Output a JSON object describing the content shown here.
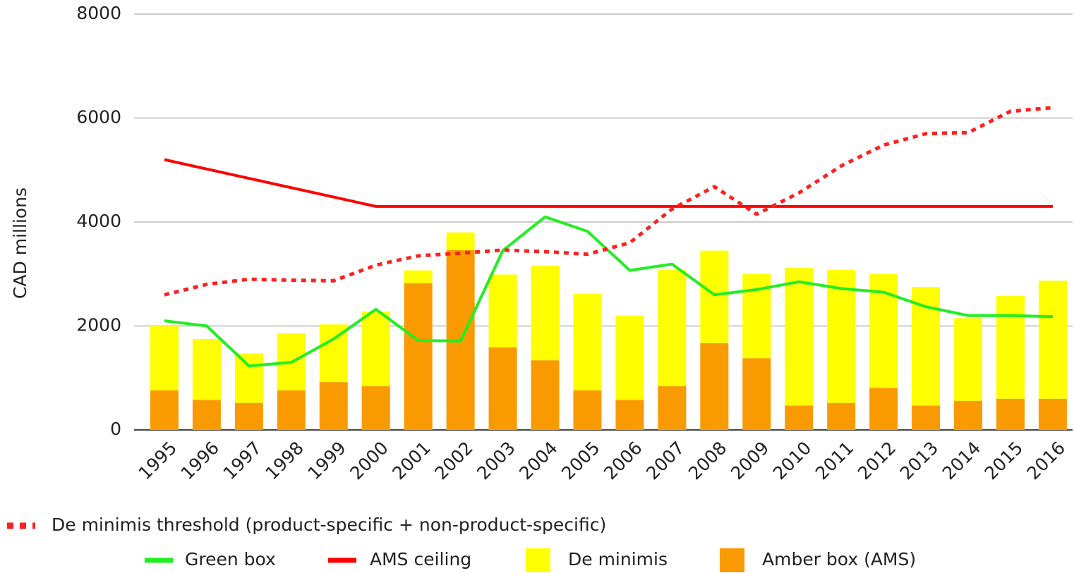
{
  "chart_data": {
    "type": "bar-line",
    "y_label": "CAD millions",
    "categories": [
      "1995",
      "1996",
      "1997",
      "1998",
      "1999",
      "2000",
      "2001",
      "2002",
      "2003",
      "2004",
      "2005",
      "2006",
      "2007",
      "2008",
      "2009",
      "2010",
      "2011",
      "2012",
      "2013",
      "2014",
      "2015",
      "2016"
    ],
    "ylim": [
      0,
      8000
    ],
    "yticks": [
      0,
      2000,
      4000,
      6000,
      8000
    ],
    "grid": true,
    "series": [
      {
        "name": "Amber box (AMS)",
        "kind": "bar",
        "color": "#f99b00",
        "values": [
          760,
          580,
          520,
          760,
          920,
          840,
          2820,
          3460,
          1590,
          1340,
          760,
          580,
          840,
          1670,
          1380,
          470,
          520,
          810,
          470,
          560,
          600,
          600
        ]
      },
      {
        "name": "De minimis",
        "kind": "bar",
        "color": "#ffff00",
        "values": [
          1240,
          1170,
          950,
          1100,
          1110,
          1440,
          250,
          340,
          1400,
          1820,
          1860,
          1620,
          2240,
          1780,
          1620,
          2650,
          2560,
          2190,
          2280,
          1590,
          1980,
          2270
        ]
      },
      {
        "name": "Green box",
        "kind": "line",
        "color": "#22ee22",
        "values": [
          2100,
          2000,
          1230,
          1300,
          1750,
          2320,
          1720,
          1710,
          3450,
          4100,
          3820,
          3070,
          3190,
          2600,
          2700,
          2850,
          2720,
          2650,
          2370,
          2200,
          2200,
          2180
        ]
      },
      {
        "name": "AMS ceiling",
        "kind": "line",
        "color": "#ff0000",
        "values": [
          5200,
          5020,
          4840,
          4660,
          4480,
          4300,
          4300,
          4300,
          4300,
          4300,
          4300,
          4300,
          4300,
          4300,
          4300,
          4300,
          4300,
          4300,
          4300,
          4300,
          4300,
          4300
        ]
      },
      {
        "name": "De minimis threshold (product-specific + non-product-specific)",
        "kind": "line",
        "dash": true,
        "color": "#ff2020",
        "values": [
          2600,
          2800,
          2900,
          2880,
          2870,
          3170,
          3350,
          3400,
          3460,
          3430,
          3380,
          3600,
          4250,
          4680,
          4150,
          4560,
          5080,
          5480,
          5700,
          5720,
          6130,
          6200
        ]
      }
    ]
  }
}
